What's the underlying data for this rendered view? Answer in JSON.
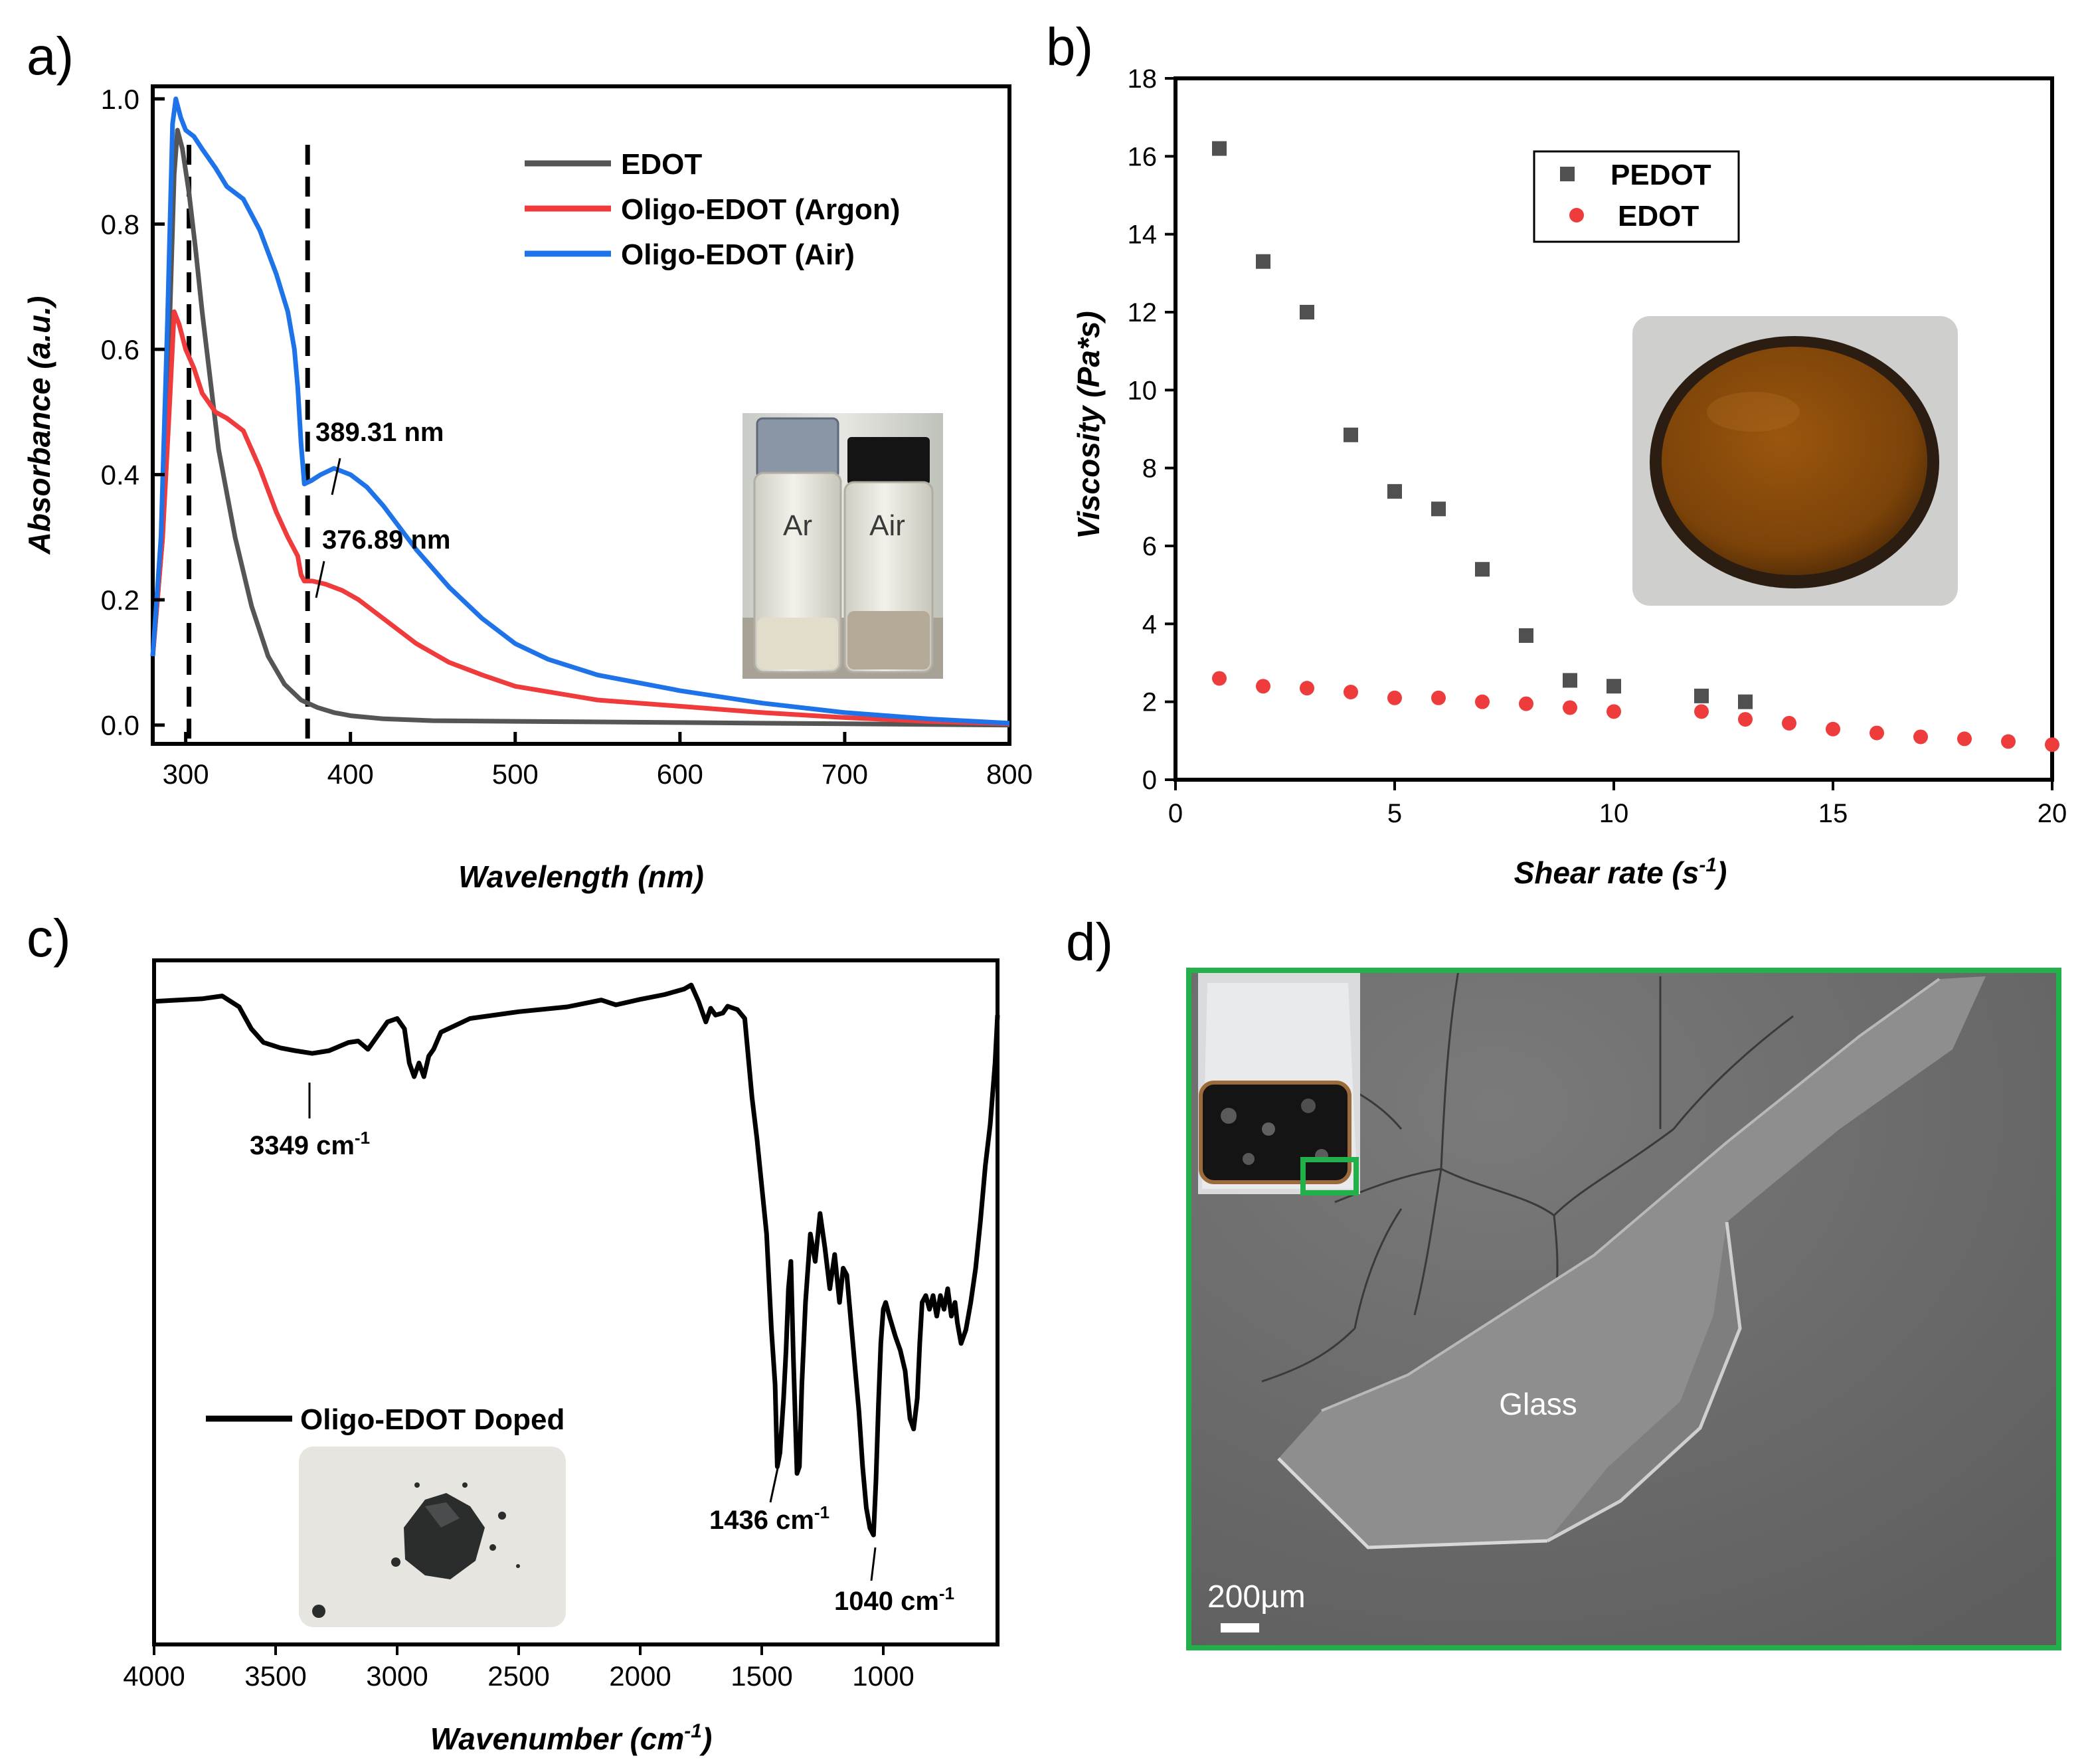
{
  "panels": {
    "a": {
      "label": "a)"
    },
    "b": {
      "label": "b)"
    },
    "c": {
      "label": "c)"
    },
    "d": {
      "label": "d)"
    }
  },
  "photos": {
    "vials_left": "Ar",
    "vials_right": "Air",
    "sem_feature": "Glass",
    "sem_scale": "200µm"
  },
  "colors": {
    "edot_line": "#555555",
    "argon_line": "#ef3b3b",
    "air_line": "#1e73e8",
    "pedot_marker": "#505050",
    "edot_marker": "#ee3c3c",
    "ftir_line": "#000000",
    "sem_frame": "#22b04b"
  },
  "chart_data": [
    {
      "id": "a",
      "type": "line",
      "title": "",
      "xlabel": "Wavelength (nm)",
      "ylabel": "Absorbance (a.u.)",
      "xlim": [
        280,
        800
      ],
      "ylim": [
        -0.03,
        1.02
      ],
      "xticks": [
        300,
        400,
        500,
        600,
        700,
        800
      ],
      "yticks": [
        0.0,
        0.2,
        0.4,
        0.6,
        0.8,
        1.0
      ],
      "xtick_labels": [
        "300",
        "400",
        "500",
        "600",
        "700",
        "800"
      ],
      "ytick_labels": [
        "0.0",
        "0.2",
        "0.4",
        "0.6",
        "0.8",
        "1.0"
      ],
      "vlines": [
        302,
        374
      ],
      "series": [
        {
          "name": "EDOT",
          "color": "#555555",
          "points": [
            [
              280,
              0.11
            ],
            [
              286,
              0.3
            ],
            [
              290,
              0.62
            ],
            [
              293,
              0.88
            ],
            [
              295,
              0.95
            ],
            [
              298,
              0.92
            ],
            [
              302,
              0.85
            ],
            [
              306,
              0.76
            ],
            [
              310,
              0.66
            ],
            [
              315,
              0.55
            ],
            [
              320,
              0.44
            ],
            [
              330,
              0.3
            ],
            [
              340,
              0.19
            ],
            [
              350,
              0.11
            ],
            [
              360,
              0.065
            ],
            [
              370,
              0.04
            ],
            [
              380,
              0.028
            ],
            [
              390,
              0.02
            ],
            [
              400,
              0.015
            ],
            [
              420,
              0.01
            ],
            [
              450,
              0.007
            ],
            [
              500,
              0.006
            ],
            [
              600,
              0.004
            ],
            [
              700,
              0.002
            ],
            [
              800,
              0.0
            ]
          ]
        },
        {
          "name": "Oligo-EDOT (Argon)",
          "color": "#ef3b3b",
          "points": [
            [
              280,
              0.11
            ],
            [
              286,
              0.3
            ],
            [
              290,
              0.5
            ],
            [
              293,
              0.66
            ],
            [
              296,
              0.64
            ],
            [
              300,
              0.6
            ],
            [
              305,
              0.57
            ],
            [
              310,
              0.53
            ],
            [
              318,
              0.5
            ],
            [
              325,
              0.49
            ],
            [
              335,
              0.47
            ],
            [
              345,
              0.41
            ],
            [
              355,
              0.34
            ],
            [
              362,
              0.3
            ],
            [
              368,
              0.27
            ],
            [
              370,
              0.24
            ],
            [
              372,
              0.23
            ],
            [
              377,
              0.23
            ],
            [
              385,
              0.225
            ],
            [
              395,
              0.215
            ],
            [
              405,
              0.2
            ],
            [
              420,
              0.17
            ],
            [
              440,
              0.13
            ],
            [
              460,
              0.1
            ],
            [
              480,
              0.08
            ],
            [
              500,
              0.062
            ],
            [
              550,
              0.04
            ],
            [
              600,
              0.03
            ],
            [
              650,
              0.02
            ],
            [
              700,
              0.012
            ],
            [
              750,
              0.006
            ],
            [
              800,
              0.002
            ]
          ]
        },
        {
          "name": "Oligo-EDOT (Air)",
          "color": "#1e73e8",
          "points": [
            [
              280,
              0.11
            ],
            [
              285,
              0.3
            ],
            [
              289,
              0.65
            ],
            [
              292,
              0.96
            ],
            [
              294,
              1.0
            ],
            [
              297,
              0.97
            ],
            [
              300,
              0.95
            ],
            [
              305,
              0.94
            ],
            [
              310,
              0.92
            ],
            [
              318,
              0.89
            ],
            [
              325,
              0.86
            ],
            [
              335,
              0.84
            ],
            [
              345,
              0.79
            ],
            [
              355,
              0.72
            ],
            [
              362,
              0.66
            ],
            [
              366,
              0.6
            ],
            [
              368,
              0.54
            ],
            [
              370,
              0.45
            ],
            [
              372,
              0.385
            ],
            [
              376,
              0.39
            ],
            [
              382,
              0.4
            ],
            [
              390,
              0.41
            ],
            [
              400,
              0.4
            ],
            [
              410,
              0.38
            ],
            [
              420,
              0.35
            ],
            [
              440,
              0.28
            ],
            [
              460,
              0.22
            ],
            [
              480,
              0.17
            ],
            [
              500,
              0.13
            ],
            [
              520,
              0.105
            ],
            [
              550,
              0.08
            ],
            [
              600,
              0.055
            ],
            [
              650,
              0.035
            ],
            [
              700,
              0.02
            ],
            [
              750,
              0.01
            ],
            [
              800,
              0.003
            ]
          ]
        }
      ],
      "legend": [
        "EDOT",
        "Oligo-EDOT (Argon)",
        "Oligo-EDOT (Air)"
      ],
      "legend_position": "top-right",
      "annotations": [
        "389.31 nm",
        "376.89 nm"
      ],
      "inset": "photo of two vials"
    },
    {
      "id": "b",
      "type": "scatter",
      "title": "",
      "xlabel": "Shear rate (s",
      "xlabel_sup": "-1",
      "xlabel_tail": ")",
      "ylabel": "Viscosity (Pa*s)",
      "xlim": [
        0,
        20
      ],
      "ylim": [
        0,
        18
      ],
      "xticks": [
        0,
        5,
        10,
        15,
        20
      ],
      "yticks": [
        0,
        2,
        4,
        6,
        8,
        10,
        12,
        14,
        16,
        18
      ],
      "xtick_labels": [
        "0",
        "5",
        "10",
        "15",
        "20"
      ],
      "ytick_labels": [
        "0",
        "2",
        "4",
        "6",
        "8",
        "10",
        "12",
        "14",
        "16",
        "18"
      ],
      "series": [
        {
          "name": "PEDOT",
          "marker": "square",
          "color": "#505050",
          "x": [
            1,
            2,
            3,
            4,
            5,
            6,
            7,
            8,
            9,
            10,
            12,
            13
          ],
          "y": [
            16.2,
            13.3,
            12.0,
            8.85,
            7.4,
            6.95,
            5.4,
            3.7,
            2.55,
            2.4,
            2.15,
            2.0
          ]
        },
        {
          "name": "EDOT",
          "marker": "circle",
          "color": "#ee3c3c",
          "x": [
            1,
            2,
            3,
            4,
            5,
            6,
            7,
            8,
            9,
            10,
            12,
            13,
            14,
            15,
            16,
            17,
            18,
            19,
            20
          ],
          "y": [
            2.6,
            2.4,
            2.35,
            2.25,
            2.1,
            2.1,
            2.0,
            1.95,
            1.85,
            1.75,
            1.75,
            1.55,
            1.45,
            1.3,
            1.2,
            1.1,
            1.05,
            0.98,
            0.9
          ]
        }
      ],
      "legend": [
        "PEDOT",
        "EDOT"
      ],
      "legend_position": "top-center",
      "inset": "photo of brown solution in dish"
    },
    {
      "id": "c",
      "type": "line",
      "title": "",
      "xlabel": "Wavenumber (cm",
      "xlabel_sup": "-1",
      "xlabel_tail": ")",
      "ylabel": "",
      "xlim": [
        4000,
        530
      ],
      "ylim": [
        0,
        100
      ],
      "xticks": [
        4000,
        3500,
        3000,
        2500,
        2000,
        1500,
        1000
      ],
      "xtick_labels": [
        "4000",
        "3500",
        "3000",
        "2500",
        "2000",
        "1500",
        "1000"
      ],
      "series": [
        {
          "name": "Oligo-EDOT Doped",
          "color": "#000000",
          "points": [
            [
              4000,
              94
            ],
            [
              3900,
              94.2
            ],
            [
              3800,
              94.4
            ],
            [
              3720,
              94.8
            ],
            [
              3650,
              93.2
            ],
            [
              3600,
              90
            ],
            [
              3550,
              88
            ],
            [
              3480,
              87.2
            ],
            [
              3420,
              86.8
            ],
            [
              3349,
              86.4
            ],
            [
              3280,
              86.8
            ],
            [
              3200,
              88
            ],
            [
              3160,
              88.2
            ],
            [
              3120,
              87
            ],
            [
              3080,
              89
            ],
            [
              3040,
              91
            ],
            [
              3000,
              91.5
            ],
            [
              2970,
              90
            ],
            [
              2950,
              85
            ],
            [
              2930,
              83
            ],
            [
              2910,
              85
            ],
            [
              2890,
              83
            ],
            [
              2870,
              86
            ],
            [
              2850,
              87
            ],
            [
              2820,
              89.5
            ],
            [
              2700,
              91.5
            ],
            [
              2500,
              92.5
            ],
            [
              2300,
              93.2
            ],
            [
              2160,
              94.2
            ],
            [
              2100,
              93.5
            ],
            [
              2000,
              94.3
            ],
            [
              1900,
              95
            ],
            [
              1820,
              95.8
            ],
            [
              1790,
              96.4
            ],
            [
              1760,
              94
            ],
            [
              1730,
              91
            ],
            [
              1710,
              93
            ],
            [
              1690,
              92
            ],
            [
              1660,
              92.3
            ],
            [
              1640,
              93.3
            ],
            [
              1600,
              92.8
            ],
            [
              1570,
              91.5
            ],
            [
              1540,
              80
            ],
            [
              1520,
              74
            ],
            [
              1500,
              67
            ],
            [
              1480,
              60
            ],
            [
              1460,
              46
            ],
            [
              1445,
              38
            ],
            [
              1436,
              26
            ],
            [
              1425,
              28
            ],
            [
              1410,
              36
            ],
            [
              1400,
              43
            ],
            [
              1390,
              52
            ],
            [
              1380,
              56
            ],
            [
              1370,
              42
            ],
            [
              1355,
              25
            ],
            [
              1345,
              26
            ],
            [
              1335,
              38
            ],
            [
              1320,
              50
            ],
            [
              1300,
              60
            ],
            [
              1280,
              56
            ],
            [
              1260,
              63
            ],
            [
              1240,
              58
            ],
            [
              1220,
              52
            ],
            [
              1200,
              57
            ],
            [
              1180,
              50
            ],
            [
              1165,
              55
            ],
            [
              1150,
              54
            ],
            [
              1130,
              46
            ],
            [
              1115,
              40
            ],
            [
              1100,
              34
            ],
            [
              1085,
              26
            ],
            [
              1070,
              20
            ],
            [
              1055,
              17
            ],
            [
              1040,
              16
            ],
            [
              1030,
              24
            ],
            [
              1020,
              35
            ],
            [
              1010,
              44
            ],
            [
              1000,
              49
            ],
            [
              990,
              50
            ],
            [
              975,
              48
            ],
            [
              950,
              45
            ],
            [
              930,
              43
            ],
            [
              910,
              40
            ],
            [
              890,
              33
            ],
            [
              875,
              31.5
            ],
            [
              860,
              36
            ],
            [
              850,
              44
            ],
            [
              840,
              50
            ],
            [
              825,
              51
            ],
            [
              810,
              49
            ],
            [
              795,
              51
            ],
            [
              780,
              48
            ],
            [
              765,
              51
            ],
            [
              750,
              49
            ],
            [
              735,
              52
            ],
            [
              720,
              48
            ],
            [
              705,
              50
            ],
            [
              695,
              47
            ],
            [
              680,
              44
            ],
            [
              660,
              46
            ],
            [
              640,
              50
            ],
            [
              620,
              55
            ],
            [
              600,
              62
            ],
            [
              580,
              70
            ],
            [
              560,
              76
            ],
            [
              540,
              85
            ],
            [
              530,
              92
            ]
          ]
        }
      ],
      "legend": [
        "Oligo-EDOT Doped"
      ],
      "legend_position": "bottom-left",
      "annotations": [
        {
          "text": "3349 cm",
          "sup": "-1"
        },
        {
          "text": "1436 cm",
          "sup": "-1"
        },
        {
          "text": "1040 cm",
          "sup": "-1"
        }
      ],
      "inset": "photo of dark powder"
    }
  ]
}
